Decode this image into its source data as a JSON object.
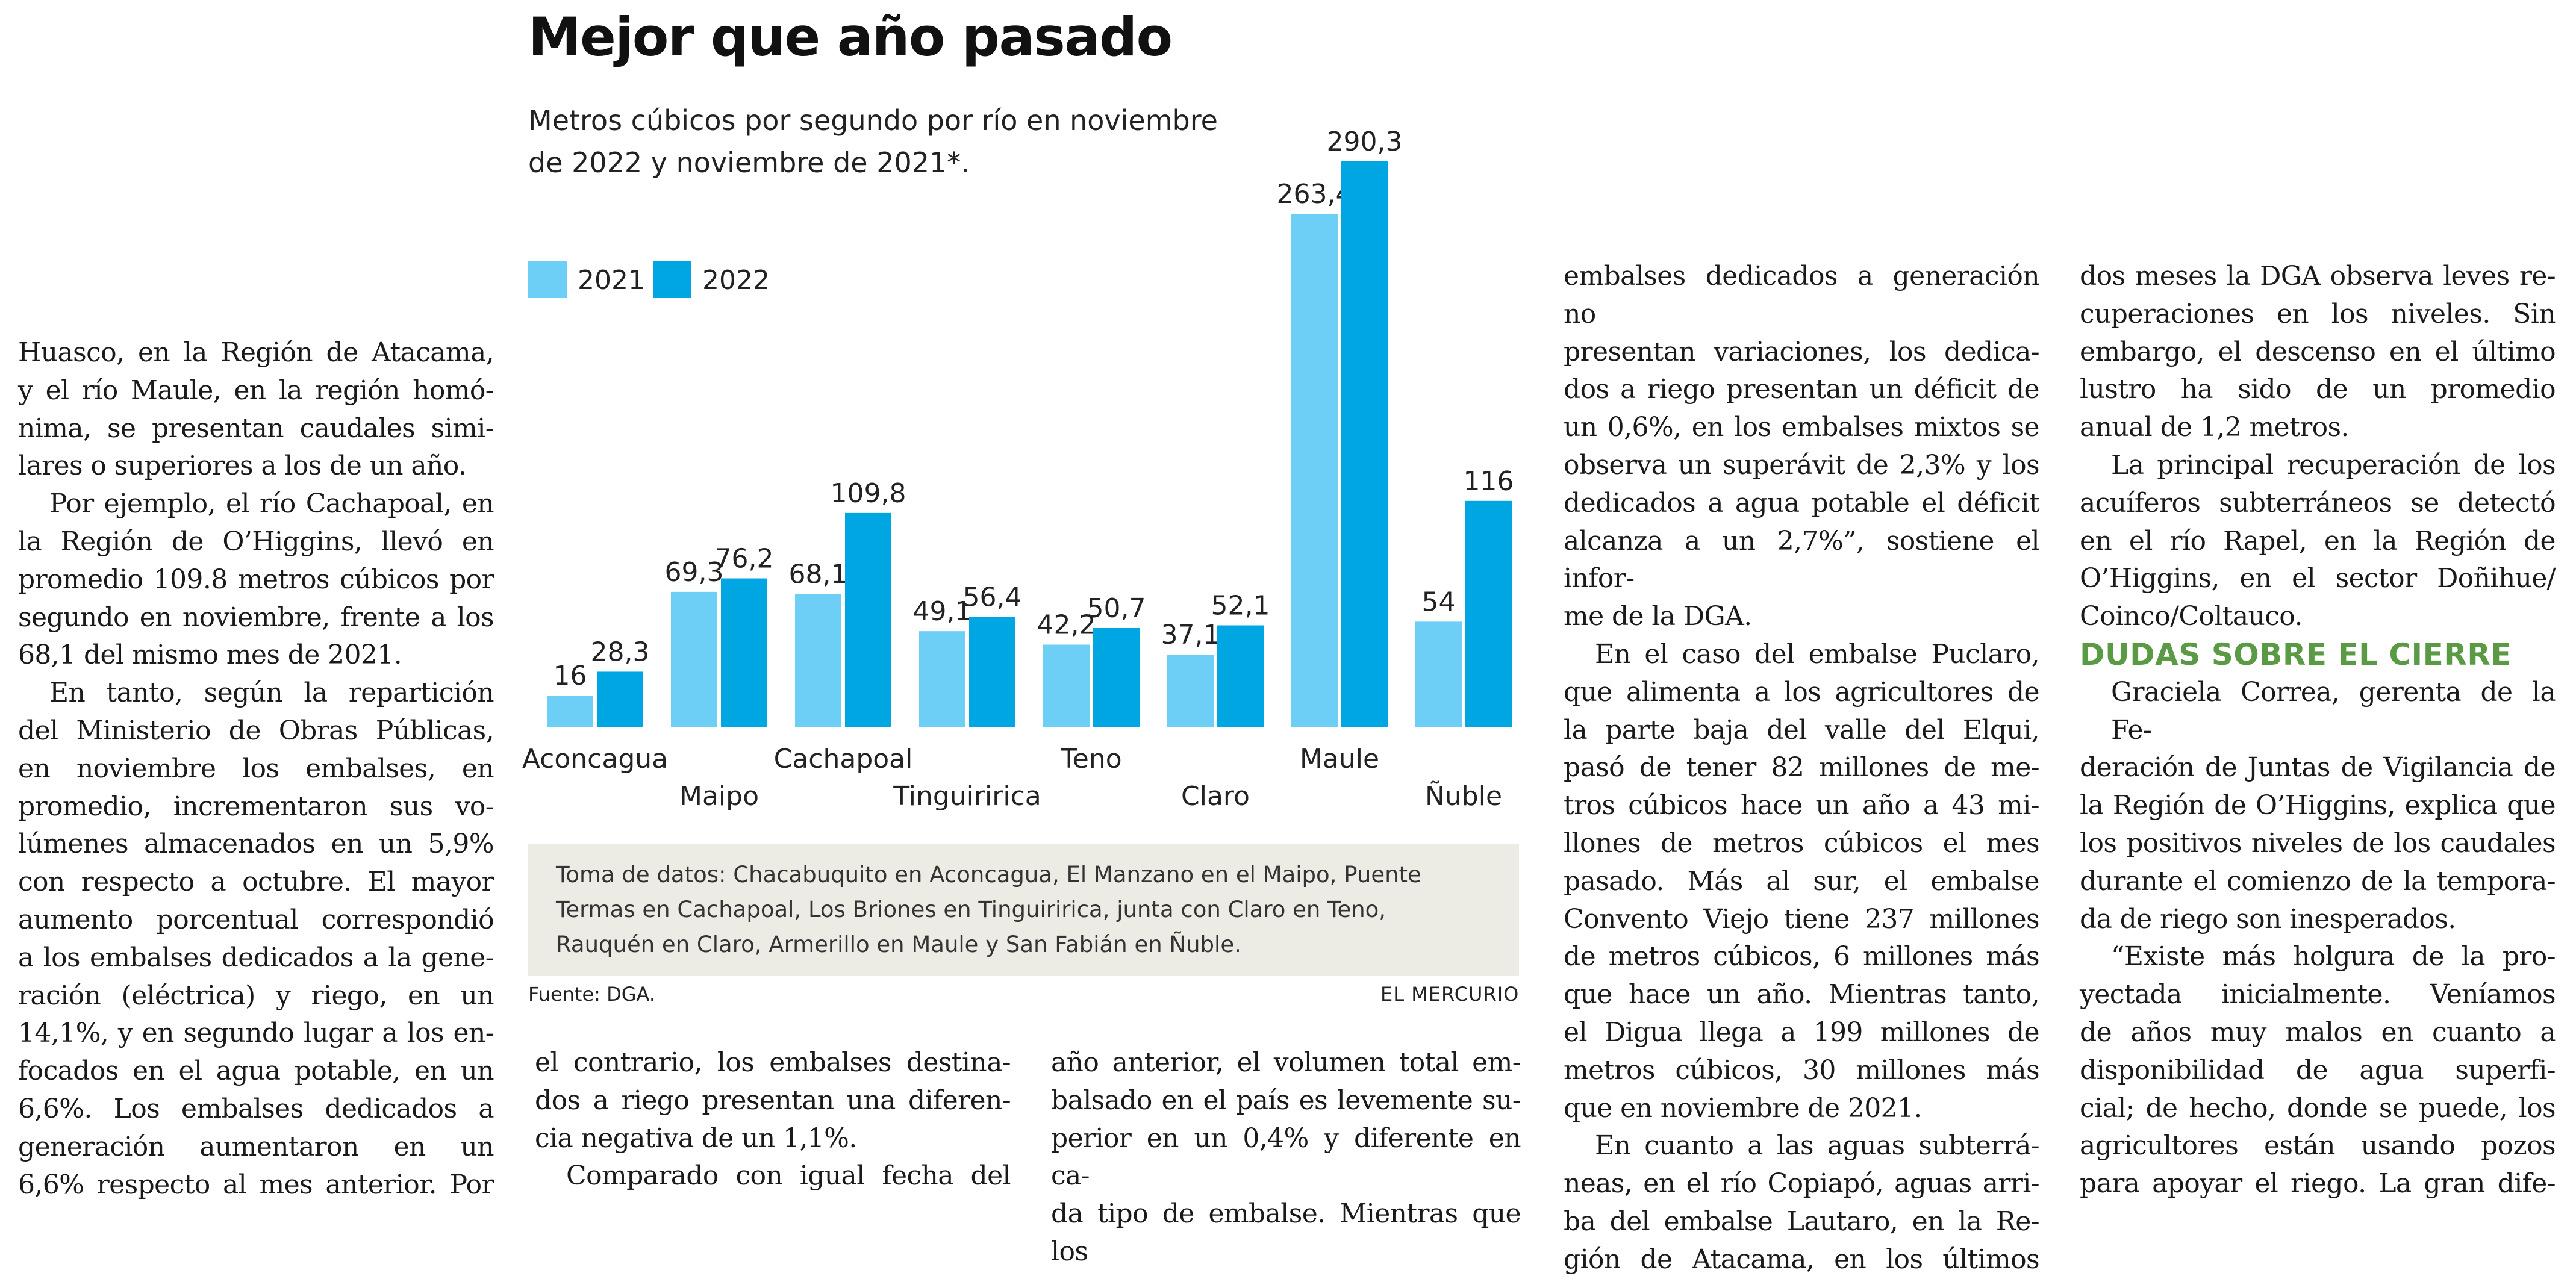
{
  "article": {
    "col1": [
      "Huasco, en la Región de Atacama,",
      "y el río Maule, en la región homó-",
      "nima, se presentan caudales simi-",
      "lares o superiores a los de un año.",
      "Por ejemplo, el río Cachapoal, en",
      "la Región de O’Higgins, llevó en",
      "promedio 109.8 metros cúbicos por",
      "segundo en noviembre, frente a los",
      "68,1 del mismo mes de 2021.",
      "En tanto, según la repartición",
      "del Ministerio de Obras Públicas,",
      "en noviembre los embalses, en",
      "promedio, incrementaron sus vo-",
      "lúmenes almacenados en un 5,9%",
      "con respecto a octubre. El mayor",
      "aumento porcentual correspondió",
      "a los embalses dedicados a la gene-",
      "ración (eléctrica) y riego, en un",
      "14,1%, y en segundo lugar a los en-",
      "focados en el agua potable, en un",
      "6,6%. Los embalses dedicados a",
      "generación aumentaron en un",
      "6,6% respecto al mes anterior. Por"
    ],
    "col2": [
      "el contrario, los embalses destina-",
      "dos a riego presentan una diferen-",
      "cia negativa de un 1,1%.",
      "Comparado con igual fecha del"
    ],
    "col3": [
      "año anterior, el volumen total em-",
      "balsado en el país es levemente su-",
      "perior en un 0,4% y diferente en ca-",
      "da tipo de embalse. Mientras que los"
    ],
    "col4": [
      "embalses dedicados a generación no",
      "presentan variaciones, los dedica-",
      "dos a riego presentan un déficit de",
      "un 0,6%, en los embalses mixtos se",
      "observa un superávit de 2,3% y los",
      "dedicados a agua potable el déficit",
      "alcanza a un 2,7%”, sostiene el infor-",
      "me de la DGA.",
      "En el caso del embalse Puclaro,",
      "que alimenta a los agricultores de",
      "la parte baja del valle del Elqui,",
      "pasó de tener 82 millones de me-",
      "tros cúbicos hace un año a 43 mi-",
      "llones de metros cúbicos el mes",
      "pasado. Más al sur, el embalse",
      "Convento Viejo tiene 237 millones",
      "de metros cúbicos, 6 millones más",
      "que hace un año. Mientras tanto,",
      "el Digua llega a 199 millones de",
      "metros cúbicos, 30 millones más",
      "que en noviembre de 2021.",
      "En cuanto a las aguas subterrá-",
      "neas, en el río Copiapó, aguas arri-",
      "ba del embalse Lautaro, en la Re-",
      "gión de Atacama, en los últimos"
    ],
    "col5": [
      "dos meses la DGA observa leves re-",
      "cuperaciones en los niveles. Sin",
      "embargo, el descenso en el último",
      "lustro ha sido de un promedio",
      "anual de 1,2 metros.",
      "La principal recuperación de los",
      "acuíferos subterráneos se detectó",
      "en el río Rapel, en la Región de",
      "O’Higgins, en el sector Doñihue/",
      "Coinco/Coltauco.",
      "DUDAS SOBRE EL CIERRE",
      "Graciela Correa, gerenta de la Fe-",
      "deración de Juntas de Vigilancia de",
      "la Región de O’Higgins, explica que",
      "los positivos niveles de los caudales",
      "durante el comienzo de la tempora-",
      "da de riego son inesperados.",
      "“Existe más holgura de la pro-",
      "yectada inicialmente. Veníamos",
      "de años muy malos en cuanto a",
      "disponibilidad de agua superfi-",
      "cial; de hecho, donde se puede, los",
      "agricultores están usando pozos",
      "para apoyar el riego. La gran dife-"
    ]
  },
  "chart_data": {
    "type": "bar",
    "title": "Mejor que año pasado",
    "subtitle": "Metros cúbicos por segundo por río en noviembre de 2022 y noviembre de 2021*.",
    "categories": [
      "Aconcagua",
      "Maipo",
      "Cachapoal",
      "Tinguiririca",
      "Teno",
      "Claro",
      "Maule",
      "Ñuble"
    ],
    "series": [
      {
        "name": "2021",
        "color": "#6dcff6",
        "values": [
          16,
          69.3,
          68.1,
          49.1,
          42.2,
          37.1,
          263.4,
          54
        ],
        "labels": [
          "16",
          "69,3",
          "68,1",
          "49,1",
          "42,2",
          "37,1",
          "263,4",
          "54"
        ]
      },
      {
        "name": "2022",
        "color": "#00a6e2",
        "values": [
          28.3,
          76.2,
          109.8,
          56.4,
          50.7,
          52.1,
          290.3,
          116
        ],
        "labels": [
          "28,3",
          "76,2",
          "109,8",
          "56,4",
          "50,7",
          "52,1",
          "290,3",
          "116"
        ]
      }
    ],
    "ylim": [
      0,
      290.3
    ],
    "legend": "top-left",
    "grid": false,
    "note": "Toma de datos: Chacabuquito en Aconcagua, El Manzano en el Maipo, Puente Termas en Cachapoal, Los Briones en Tinguiririca, junta con Claro en Teno, Rauquén en Claro, Armerillo en Maule y San Fabián en Ñuble.",
    "source": "Fuente: DGA.",
    "credit": "EL MERCURIO"
  }
}
